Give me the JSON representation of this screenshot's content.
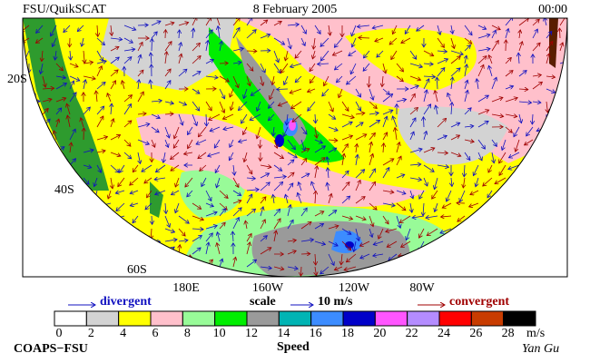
{
  "header": {
    "title": "FSU/QuikSCAT",
    "date": "8 February 2005",
    "time": "00:00"
  },
  "map": {
    "lat_labels": [
      "20S",
      "40S",
      "60S"
    ],
    "lon_labels": [
      "180E",
      "160W",
      "120W",
      "80W"
    ]
  },
  "legend": {
    "divergent": "divergent",
    "scale": "scale",
    "scale_value": "10 m/s",
    "convergent": "convergent"
  },
  "colorbar": {
    "label": "Speed",
    "unit": "m/s",
    "ticks": [
      0,
      2,
      4,
      6,
      8,
      10,
      12,
      14,
      16,
      18,
      20,
      22,
      24,
      26,
      28
    ],
    "colors": [
      "#ffffff",
      "#d3d3d3",
      "#ffff00",
      "#ffc0cb",
      "#98fb98",
      "#00ee00",
      "#9a9a9a",
      "#00b4b4",
      "#3c8cff",
      "#0000c8",
      "#ff55ff",
      "#b48cff",
      "#ff0000",
      "#c83c00",
      "#000000"
    ]
  },
  "footer": {
    "left": "COAPS−FSU",
    "right": "Yan Gu"
  }
}
